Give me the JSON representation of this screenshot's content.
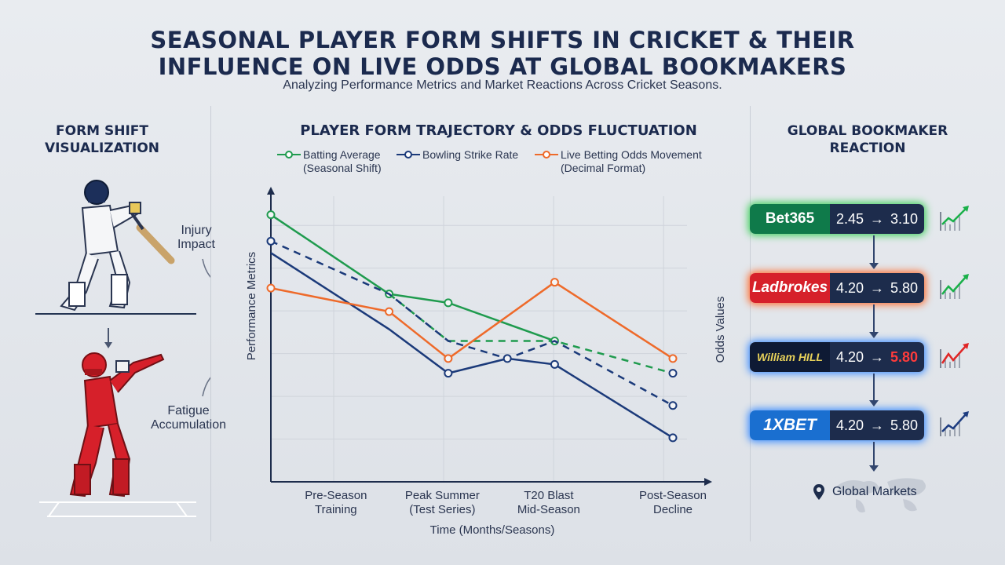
{
  "header": {
    "title_line1": "SEASONAL PLAYER FORM SHIFTS IN CRICKET & THEIR",
    "title_line2": "INFLUENCE ON LIVE ODDS AT GLOBAL BOOKMAKERS",
    "subtitle": "Analyzing Performance Metrics and Market Reactions Across Cricket Seasons."
  },
  "left_panel": {
    "title_line1": "FORM SHIFT",
    "title_line2": "VISUALIZATION",
    "note_top_line1": "Injury",
    "note_top_line2": "Impact",
    "note_bottom_line1": "Fatigue",
    "note_bottom_line2": "Accumulation"
  },
  "right_panel": {
    "title_line1": "GLOBAL BOOKMAKER",
    "title_line2": "REACTION",
    "footer": "Global Markets",
    "bookmakers": [
      {
        "name": "Bet365",
        "from": "2.45",
        "arrow": "→",
        "to": "3.10",
        "glow": "#3cd05a",
        "trend": "up-green"
      },
      {
        "name": "Ladbrokes",
        "from": "4.20",
        "arrow": "→",
        "to": "5.80",
        "glow": "#ff6a2a",
        "trend": "up-green"
      },
      {
        "name": "William HILL",
        "from": "4.20",
        "arrow": "→",
        "to": "5.80",
        "glow": "#3b8cff",
        "trend": "up-red"
      },
      {
        "name": "1XBET",
        "from": "4.20",
        "arrow": "→",
        "to": "5.80",
        "glow": "#3b8cff",
        "trend": "up-blue"
      }
    ]
  },
  "chart_data": {
    "type": "line",
    "title": "PLAYER FORM TRAJECTORY & ODDS FLUCTUATION",
    "xlabel": "Time (Months/Seasons)",
    "ylabel": "Performance Metrics",
    "y2label": "Odds Values",
    "categories": [
      [
        "Pre-Season",
        "Training"
      ],
      [
        "Peak Summer",
        "(Test Series)"
      ],
      [
        "T20 Blast",
        "Mid-Season"
      ],
      [
        "Post-Season",
        "Decline"
      ]
    ],
    "ylim": [
      0,
      100
    ],
    "grid": true,
    "legend_position": "top",
    "series": [
      {
        "name": "Batting Average",
        "name2": "(Seasonal Shift)",
        "color": "#1f9b4e",
        "solid": {
          "x": [
            0,
            1,
            1.5,
            2.4
          ],
          "y": [
            91,
            64,
            61,
            48
          ]
        },
        "dashed": {
          "x": [
            1,
            1.5,
            2.4,
            3.4
          ],
          "y": [
            64,
            48,
            48,
            37
          ]
        },
        "markers": {
          "x": [
            0,
            1,
            1.5,
            2.4
          ],
          "y": [
            91,
            64,
            61,
            48
          ]
        }
      },
      {
        "name": "Bowling Strike Rate",
        "name2": "",
        "color": "#1b3a7a",
        "solid": {
          "x": [
            0,
            1,
            1.5,
            2.0,
            2.4,
            3.4
          ],
          "y": [
            78,
            52,
            37,
            42,
            40,
            15
          ]
        },
        "dashed": {
          "x": [
            0,
            1,
            1.5,
            2.0,
            2.4,
            3.4
          ],
          "y": [
            82,
            64,
            48,
            42,
            48,
            26
          ]
        },
        "markers": {
          "x": [
            0,
            1.5,
            2.0,
            2.4,
            3.4,
            3.4,
            3.4
          ],
          "y": [
            82,
            37,
            42,
            40,
            37,
            26,
            15
          ]
        }
      },
      {
        "name": "Live Betting Odds Movement",
        "name2": "(Decimal Format)",
        "color": "#ee6a2a",
        "solid": {
          "x": [
            0,
            1,
            1.5,
            2.4,
            3.4
          ],
          "y": [
            66,
            58,
            42,
            68,
            42
          ]
        },
        "dashed": {
          "x": [],
          "y": []
        },
        "markers": {
          "x": [
            0,
            1,
            1.5,
            2.4,
            3.4
          ],
          "y": [
            66,
            58,
            42,
            68,
            42
          ]
        }
      }
    ]
  }
}
